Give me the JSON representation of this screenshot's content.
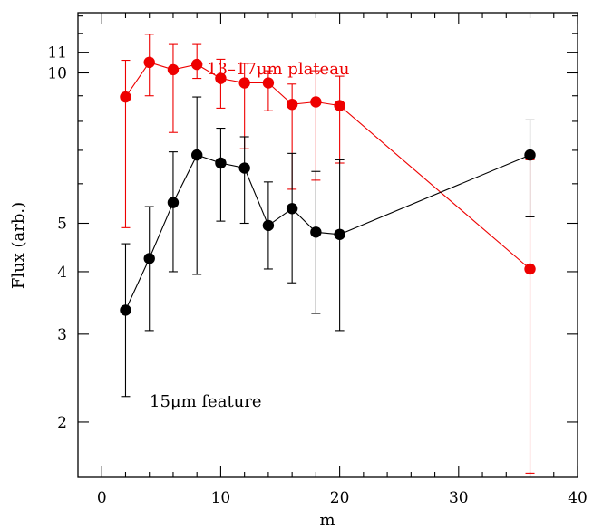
{
  "chart_data": {
    "type": "line",
    "xlabel": "m",
    "ylabel": "Flux (arb.)",
    "xlim": [
      -2,
      40
    ],
    "ylim": [
      1.55,
      13.2
    ],
    "yscale": "log",
    "x_ticks": [
      "0",
      "10",
      "20",
      "30",
      "40"
    ],
    "y_ticks": [
      "2",
      "3",
      "4",
      "5",
      "10",
      "11"
    ],
    "y_tick_values": [
      2,
      3,
      4,
      5,
      10,
      11
    ],
    "annotations": [
      "13–17μm plateau",
      "15μm feature"
    ],
    "series": [
      {
        "label": "13–17μm plateau",
        "color": "#ee0000",
        "points": [
          {
            "x": 2,
            "y": 8.95,
            "lo": 4.9,
            "hi": 10.6
          },
          {
            "x": 4,
            "y": 10.5,
            "lo": 9.0,
            "hi": 11.95
          },
          {
            "x": 6,
            "y": 10.15,
            "lo": 7.6,
            "hi": 11.4
          },
          {
            "x": 8,
            "y": 10.4,
            "lo": 9.75,
            "hi": 11.4
          },
          {
            "x": 10,
            "y": 9.75,
            "lo": 8.5,
            "hi": 10.65
          },
          {
            "x": 12,
            "y": 9.55,
            "lo": 7.05,
            "hi": 10.45
          },
          {
            "x": 14,
            "y": 9.55,
            "lo": 8.4,
            "hi": 10.1
          },
          {
            "x": 16,
            "y": 8.65,
            "lo": 5.85,
            "hi": 9.5
          },
          {
            "x": 18,
            "y": 8.75,
            "lo": 6.1,
            "hi": 10.1
          },
          {
            "x": 20,
            "y": 8.6,
            "lo": 6.6,
            "hi": 9.85
          },
          {
            "x": 36,
            "y": 4.05,
            "lo": 1.58,
            "hi": 6.7
          }
        ]
      },
      {
        "label": "15μm feature",
        "color": "#000000",
        "points": [
          {
            "x": 2,
            "y": 3.35,
            "lo": 2.25,
            "hi": 4.55
          },
          {
            "x": 4,
            "y": 4.25,
            "lo": 3.05,
            "hi": 5.4
          },
          {
            "x": 6,
            "y": 5.5,
            "lo": 4.0,
            "hi": 6.95
          },
          {
            "x": 8,
            "y": 6.85,
            "lo": 3.95,
            "hi": 8.95
          },
          {
            "x": 10,
            "y": 6.6,
            "lo": 5.05,
            "hi": 7.75
          },
          {
            "x": 12,
            "y": 6.45,
            "lo": 5.0,
            "hi": 7.45
          },
          {
            "x": 14,
            "y": 4.95,
            "lo": 4.05,
            "hi": 6.05
          },
          {
            "x": 16,
            "y": 5.35,
            "lo": 3.8,
            "hi": 6.9
          },
          {
            "x": 18,
            "y": 4.8,
            "lo": 3.3,
            "hi": 6.35
          },
          {
            "x": 20,
            "y": 4.75,
            "lo": 3.05,
            "hi": 6.7
          },
          {
            "x": 36,
            "y": 6.85,
            "lo": 5.15,
            "hi": 8.05
          }
        ]
      }
    ]
  }
}
